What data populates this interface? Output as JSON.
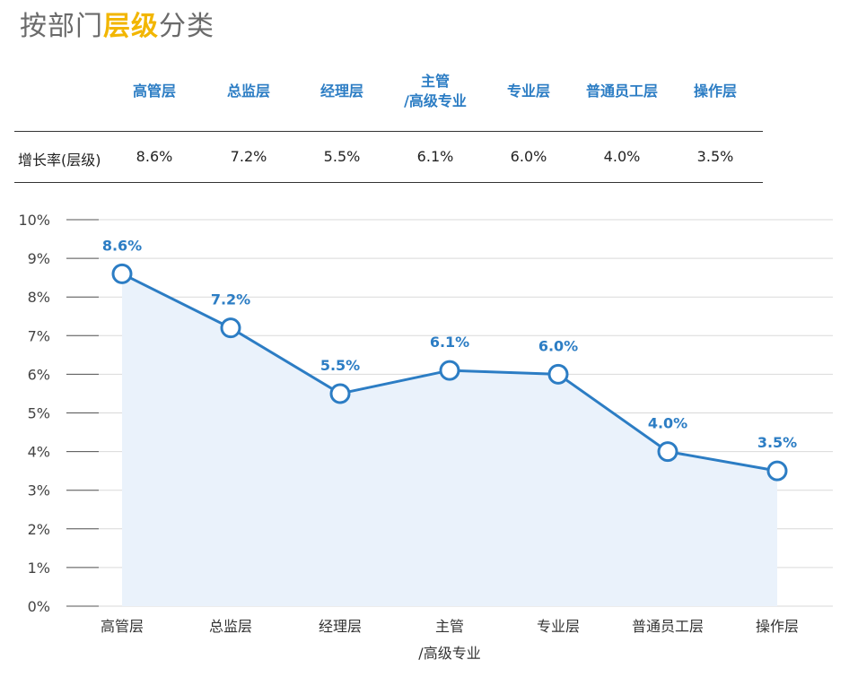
{
  "title": {
    "prefix": "按部门",
    "highlight": "层级",
    "suffix": "分类"
  },
  "table": {
    "columns": [
      "高管层",
      "总监层",
      "经理层",
      "主管\n/高级专业",
      "专业层",
      "普通员工层",
      "操作层"
    ],
    "row_label": "增长率(层级)",
    "values": [
      "8.6%",
      "7.2%",
      "5.5%",
      "6.1%",
      "6.0%",
      "4.0%",
      "3.5%"
    ]
  },
  "chart_data": {
    "type": "line",
    "categories": [
      "高管层",
      "总监层",
      "经理层",
      "主管\n/高级专业",
      "专业层",
      "普通员工层",
      "操作层"
    ],
    "series": [
      {
        "values": [
          8.6,
          7.2,
          5.5,
          6.1,
          6.0,
          4.0,
          3.5
        ]
      }
    ],
    "data_labels": [
      "8.6%",
      "7.2%",
      "5.5%",
      "6.1%",
      "6.0%",
      "4.0%",
      "3.5%"
    ],
    "y_ticks": [
      "0%",
      "1%",
      "2%",
      "3%",
      "4%",
      "5%",
      "6%",
      "7%",
      "8%",
      "9%",
      "10%"
    ],
    "ylim": [
      0,
      10
    ],
    "grid": true,
    "colors": {
      "line": "#2c7dc4",
      "area": "#eaf2fb",
      "grid": "#d9d9d9",
      "label": "#2c7dc4"
    }
  }
}
